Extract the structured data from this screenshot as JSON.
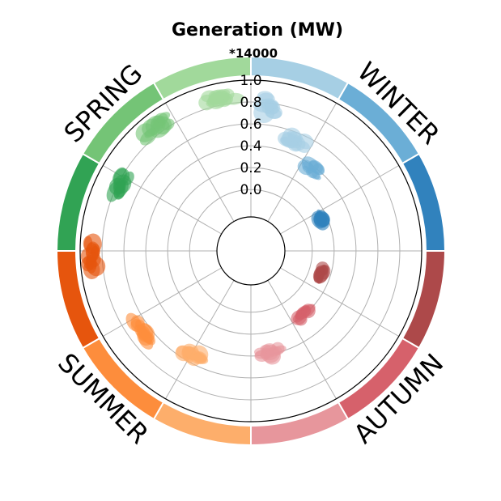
{
  "chart_data": {
    "type": "scatter",
    "projection": "polar",
    "title": "Generation (MW)",
    "scale_note": "*14000",
    "r_range": [
      -0.25,
      1.0
    ],
    "r_ticks": [
      "0.0",
      "0.2",
      "0.4",
      "0.6",
      "0.8",
      "1.0"
    ],
    "r_tick_values": [
      0.0,
      0.2,
      0.4,
      0.6,
      0.8,
      1.0
    ],
    "angular_grid_count": 12,
    "grid": true,
    "seasons": [
      {
        "name": "WINTER",
        "months": [
          {
            "color": "#a6cfe4",
            "clusters": [
              [
                8,
                0.78,
                4,
                0.08,
                12
              ],
              [
                22,
                0.52,
                5,
                0.05,
                12
              ]
            ]
          },
          {
            "color": "#6baed6",
            "clusters": [
              [
                38,
                0.38,
                5,
                0.04,
                10
              ]
            ]
          },
          {
            "color": "#3182bd",
            "clusters": [
              [
                66,
                0.14,
                5,
                0.02,
                12
              ]
            ]
          }
        ]
      },
      {
        "name": "AUTUMN",
        "months": [
          {
            "color": "#ad494a",
            "clusters": [
              [
                108,
                0.12,
                5,
                0.03,
                12
              ]
            ]
          },
          {
            "color": "#d6616b",
            "clusters": [
              [
                140,
                0.18,
                5,
                0.04,
                12
              ]
            ]
          },
          {
            "color": "#e7969c",
            "clusters": [
              [
                170,
                0.38,
                6,
                0.05,
                14
              ]
            ]
          }
        ]
      },
      {
        "name": "SUMMER",
        "months": [
          {
            "color": "#fdae6b",
            "clusters": [
              [
                210,
                0.54,
                5,
                0.04,
                14
              ]
            ]
          },
          {
            "color": "#fd8d3c",
            "clusters": [
              [
                234,
                0.67,
                5,
                0.04,
                14
              ]
            ]
          },
          {
            "color": "#e6550d",
            "clusters": [
              [
                268,
                0.9,
                5,
                0.04,
                14
              ]
            ]
          }
        ]
      },
      {
        "name": "SPRING",
        "months": [
          {
            "color": "#31a354",
            "clusters": [
              [
                297,
                0.78,
                4,
                0.04,
                12
              ]
            ]
          },
          {
            "color": "#74c476",
            "clusters": [
              [
                322,
                0.86,
                5,
                0.04,
                12
              ]
            ]
          },
          {
            "color": "#a1d99b",
            "clusters": [
              [
                348,
                0.87,
                6,
                0.04,
                14
              ]
            ]
          }
        ]
      }
    ]
  }
}
